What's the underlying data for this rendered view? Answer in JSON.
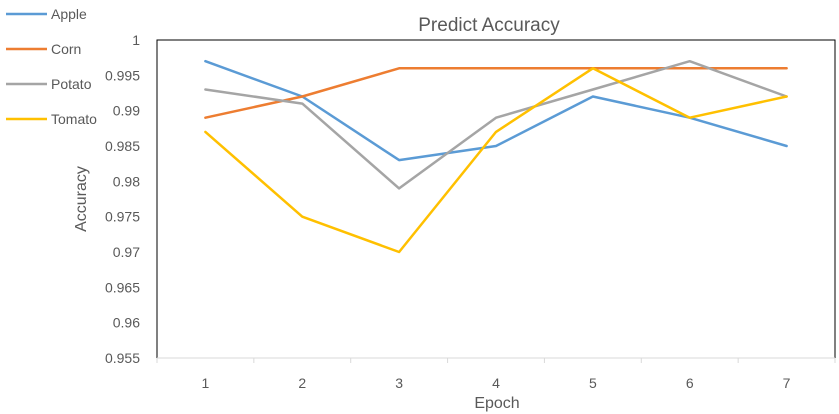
{
  "chart_data": {
    "type": "line",
    "title": "Predict Accuracy",
    "xlabel": "Epoch",
    "ylabel": "Accuracy",
    "categories": [
      "1",
      "2",
      "3",
      "4",
      "5",
      "6",
      "7"
    ],
    "y_ticks": [
      "0.955",
      "0.96",
      "0.965",
      "0.97",
      "0.975",
      "0.98",
      "0.985",
      "0.99",
      "0.995",
      "1"
    ],
    "ylim": [
      0.955,
      1.0
    ],
    "grid": false,
    "legend_position": "top-left",
    "series": [
      {
        "name": "Apple",
        "color": "#5B9BD5",
        "values": [
          0.997,
          0.992,
          0.983,
          0.985,
          0.992,
          0.989,
          0.985
        ]
      },
      {
        "name": "Corn",
        "color": "#ED7D31",
        "values": [
          0.989,
          0.992,
          0.996,
          0.996,
          0.996,
          0.996,
          0.996
        ]
      },
      {
        "name": "Potato",
        "color": "#A5A5A5",
        "values": [
          0.993,
          0.991,
          0.979,
          0.989,
          0.993,
          0.997,
          0.992
        ]
      },
      {
        "name": "Tomato",
        "color": "#FFC000",
        "values": [
          0.987,
          0.975,
          0.97,
          0.987,
          0.996,
          0.989,
          0.992
        ]
      }
    ]
  }
}
